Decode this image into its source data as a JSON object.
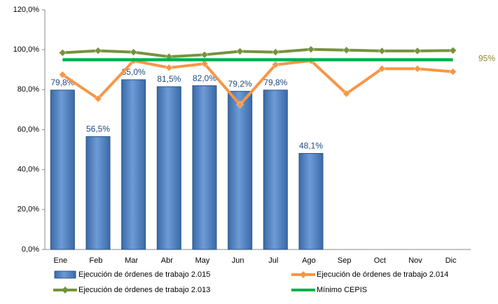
{
  "chart_data": {
    "type": "bar_line",
    "categories": [
      "Ene",
      "Feb",
      "Mar",
      "Abr",
      "May",
      "Jun",
      "Jul",
      "Ago",
      "Sep",
      "Oct",
      "Nov",
      "Dic"
    ],
    "ylim": [
      0,
      120
    ],
    "yticks": [
      {
        "value": 0,
        "label": "0,0%"
      },
      {
        "value": 20,
        "label": "20,0%"
      },
      {
        "value": 40,
        "label": "40,0%"
      },
      {
        "value": 60,
        "label": "60,0%"
      },
      {
        "value": 80,
        "label": "80,0%"
      },
      {
        "value": 100,
        "label": "100,0%"
      },
      {
        "value": 120,
        "label": "120,0%"
      }
    ],
    "grid": false,
    "series": [
      {
        "name": "Ejecución de órdenes de trabajo 2.015",
        "kind": "bar",
        "color": "#4f81bd",
        "values": [
          79.8,
          56.5,
          85.0,
          81.5,
          82.0,
          79.2,
          79.8,
          48.1,
          null,
          null,
          null,
          null
        ],
        "value_labels": [
          "79,8%",
          "56,5%",
          "85,0%",
          "81,5%",
          "82,0%",
          "79,2%",
          "79,8%",
          "48,1%",
          null,
          null,
          null,
          null
        ]
      },
      {
        "name": "Ejecución de órdenes de trabajo 2.014",
        "kind": "line",
        "color": "#f79646",
        "values": [
          87.5,
          75.5,
          94.5,
          91,
          93,
          72.5,
          92.5,
          94.5,
          78,
          90.5,
          90.5,
          89
        ]
      },
      {
        "name": "Ejecución de órdenes de trabajo 2.013",
        "kind": "line",
        "color": "#76923c",
        "values": [
          98.5,
          99.5,
          98.8,
          96.5,
          97.5,
          99.2,
          98.8,
          100.2,
          99.8,
          99.4,
          99.4,
          99.6
        ]
      },
      {
        "name": "Mínimo CEPIS",
        "kind": "line",
        "color": "#00b050",
        "marker": false,
        "values": [
          95,
          95,
          95,
          95,
          95,
          95,
          95,
          95,
          95,
          95,
          95,
          95
        ],
        "end_label": "95%"
      }
    ]
  }
}
